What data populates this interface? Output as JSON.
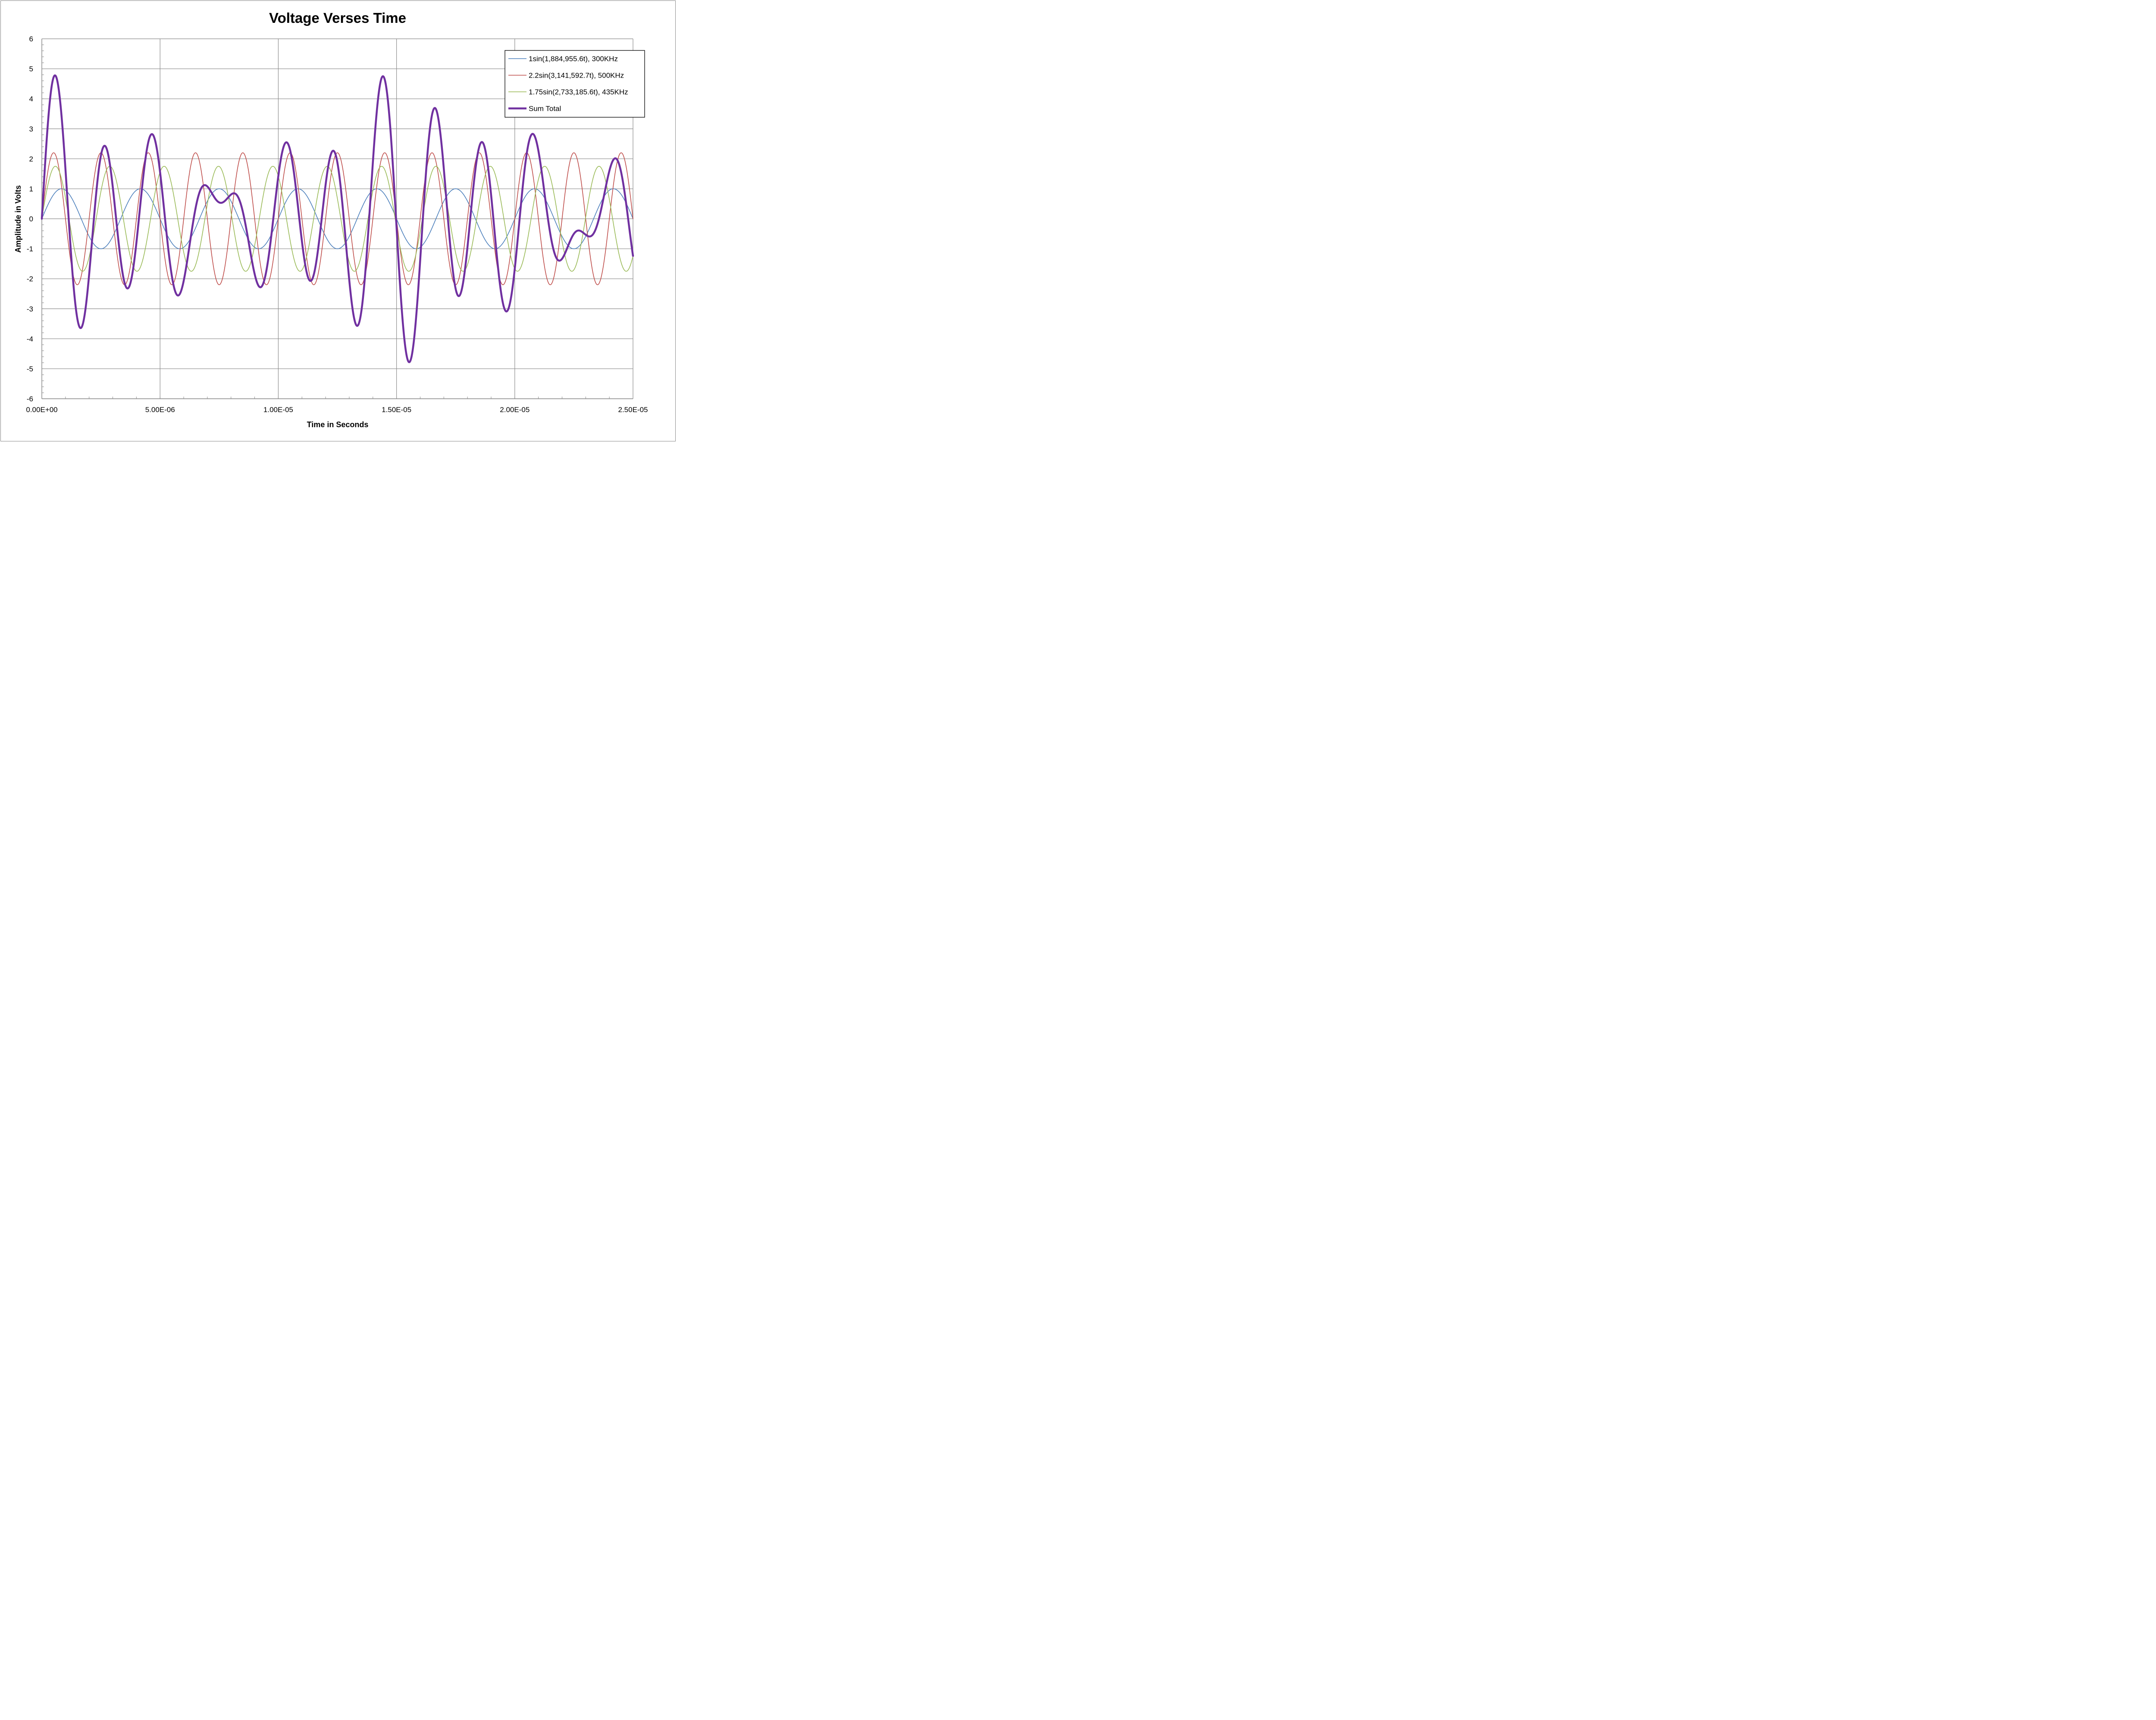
{
  "chart_data": {
    "type": "line",
    "title": "Voltage Verses Time",
    "xlabel": "Time in Seconds",
    "ylabel": "Amplitude in Volts",
    "xlim": [
      0,
      2.5e-05
    ],
    "ylim": [
      -6,
      6
    ],
    "x_ticks": [
      0,
      5e-06,
      1e-05,
      1.5e-05,
      2e-05,
      2.5e-05
    ],
    "x_tick_labels": [
      "0.00E+00",
      "5.00E-06",
      "1.00E-05",
      "1.50E-05",
      "2.00E-05",
      "2.50E-05"
    ],
    "y_ticks": [
      6,
      5,
      4,
      3,
      2,
      1,
      0,
      -1,
      -2,
      -3,
      -4,
      -5,
      -6
    ],
    "y_tick_labels": [
      "6",
      "5",
      "4",
      "3",
      "2",
      "1",
      "0",
      "-1",
      "-2",
      "-3",
      "-4",
      "-5",
      "-6"
    ],
    "grid": true,
    "legend_position": "top-right",
    "series": [
      {
        "name": "1sin(1,884,955.6t), 300KHz",
        "amplitude": 1,
        "angular_frequency": 1884955.6,
        "color": "#4a7ebb",
        "line_weight": "thin"
      },
      {
        "name": "2.2sin(3,141,592.7t), 500KHz",
        "amplitude": 2.2,
        "angular_frequency": 3141592.7,
        "color": "#be4b48",
        "line_weight": "thin"
      },
      {
        "name": "1.75sin(2,733,185.6t), 435KHz",
        "amplitude": 1.75,
        "angular_frequency": 2733185.6,
        "color": "#98b954",
        "line_weight": "thin"
      },
      {
        "name": "Sum Total",
        "components": [
          0,
          1,
          2
        ],
        "color": "#7030a0",
        "line_weight": "thick"
      }
    ]
  }
}
